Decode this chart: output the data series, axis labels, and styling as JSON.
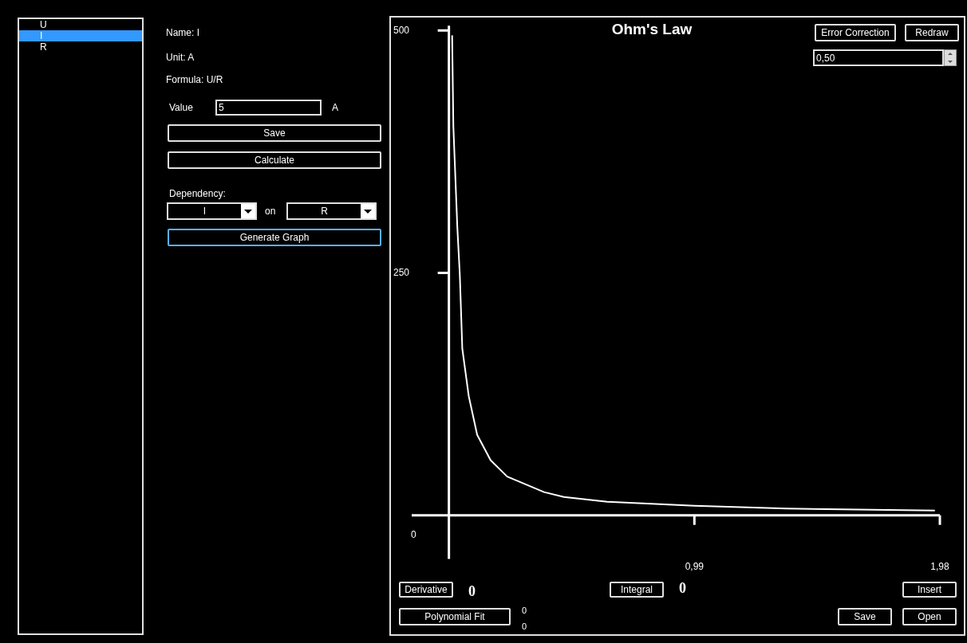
{
  "chart_data": {
    "type": "line",
    "title": "Ohm's Law",
    "x": [
      0.013,
      0.018,
      0.034,
      0.044,
      0.054,
      0.08,
      0.114,
      0.168,
      0.235,
      0.384,
      0.464,
      0.639,
      0.99,
      1.361,
      1.96
    ],
    "series": [
      {
        "color": "#ffffff",
        "values": [
          495,
          401,
          297,
          248,
          172,
          123,
          83,
          57,
          40,
          24,
          19,
          14,
          10,
          7,
          5
        ]
      }
    ],
    "xlim": [
      -0.15,
      1.98
    ],
    "ylim": [
      -45,
      505
    ],
    "xticks": [
      {
        "value": 0.99,
        "label": "0,99"
      },
      {
        "value": 1.98,
        "label": "1,98"
      }
    ],
    "yticks": [
      250,
      500
    ],
    "grid": false,
    "legend": false,
    "marker": "none",
    "line_style": "solid",
    "annotations": [
      "U",
      "I",
      "R",
      "Name: I",
      "Unit: A",
      "Formula: U/R",
      "Value",
      "5",
      "A",
      "Save",
      "Calculate",
      "Dependency:",
      "I",
      "on",
      "R",
      "Generate Graph",
      "Error Correction",
      "Redraw",
      "0,50",
      "Derivative",
      "0",
      "Integral",
      "0",
      "Polynomial Fit",
      "0",
      "0",
      "Insert",
      "Save",
      "Open",
      "0"
    ]
  }
}
